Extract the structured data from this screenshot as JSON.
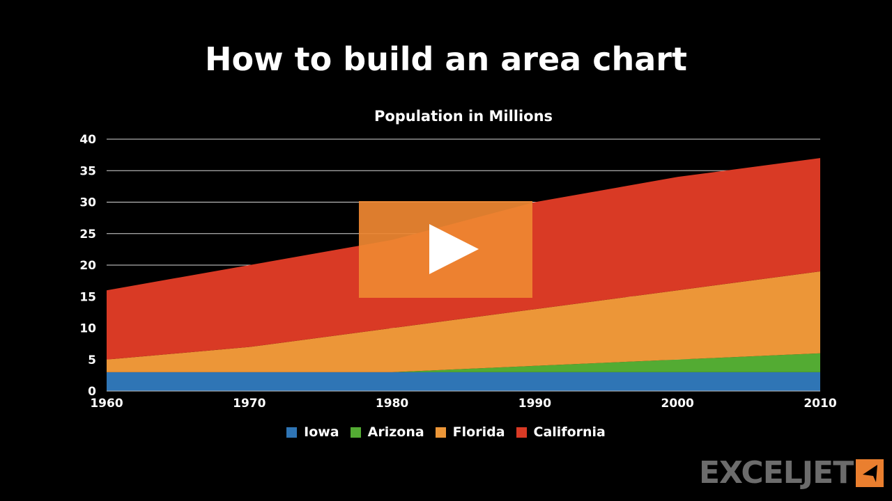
{
  "page": {
    "title": "How to build an area chart",
    "logo_text": "EXCELJET"
  },
  "colors": {
    "Iowa": "#2f75b5",
    "Arizona": "#53ab33",
    "Florida": "#ec9638",
    "California": "#d93a25",
    "play_overlay": "#ee8732",
    "logo_accent": "#ea7f2f"
  },
  "legend": [
    "Iowa",
    "Arizona",
    "Florida",
    "California"
  ],
  "chart_data": {
    "type": "area",
    "stacked": true,
    "title": "Population in Millions",
    "xlabel": "",
    "ylabel": "",
    "categories": [
      "1960",
      "1970",
      "1980",
      "1990",
      "2000",
      "2010"
    ],
    "series": [
      {
        "name": "Iowa",
        "values": [
          3,
          3,
          3,
          3,
          3,
          3
        ]
      },
      {
        "name": "Arizona",
        "values": [
          0,
          0,
          0,
          1,
          2,
          3
        ]
      },
      {
        "name": "Florida",
        "values": [
          2,
          4,
          7,
          9,
          11,
          13
        ]
      },
      {
        "name": "California",
        "values": [
          11,
          13,
          14,
          17,
          18,
          18
        ]
      }
    ],
    "ylim": [
      0,
      40
    ],
    "yticks": [
      0,
      5,
      10,
      15,
      20,
      25,
      30,
      35,
      40
    ],
    "grid": true,
    "legend_position": "bottom"
  },
  "overlay": {
    "play_button": "play"
  }
}
